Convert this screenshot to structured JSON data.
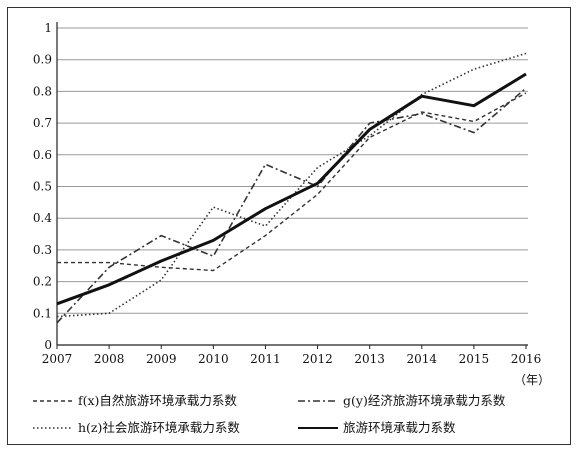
{
  "chart_data": {
    "type": "line",
    "title": "",
    "xlabel": "",
    "x_unit": "（年）",
    "ylabel": "",
    "x": [
      "2007",
      "2008",
      "2009",
      "2010",
      "2011",
      "2012",
      "2013",
      "2014",
      "2015",
      "2016"
    ],
    "yticks": [
      "0",
      "0.1",
      "0.2",
      "0.3",
      "0.4",
      "0.5",
      "0.6",
      "0.7",
      "0.8",
      "0.9",
      "1"
    ],
    "ylim": [
      0,
      1
    ],
    "grid": true,
    "legend_position": "bottom",
    "series": [
      {
        "name": "f(x)自然旅游环境承载力系数",
        "style": "dashed",
        "color": "#333333",
        "values": [
          0.26,
          0.26,
          0.245,
          0.235,
          0.345,
          0.475,
          0.655,
          0.735,
          0.705,
          0.795
        ]
      },
      {
        "name": "g(y)经济旅游环境承载力系数",
        "style": "dash-dot",
        "color": "#333333",
        "values": [
          0.07,
          0.245,
          0.345,
          0.28,
          0.57,
          0.5,
          0.7,
          0.73,
          0.67,
          0.81
        ]
      },
      {
        "name": "h(z)社会旅游环境承载力系数",
        "style": "dotted",
        "color": "#333333",
        "values": [
          0.09,
          0.1,
          0.205,
          0.435,
          0.375,
          0.56,
          0.66,
          0.79,
          0.87,
          0.92
        ]
      },
      {
        "name": "旅游环境承载力系数",
        "style": "solid-bold",
        "color": "#111111",
        "values": [
          0.13,
          0.19,
          0.265,
          0.33,
          0.43,
          0.51,
          0.68,
          0.785,
          0.755,
          0.855
        ]
      }
    ]
  }
}
